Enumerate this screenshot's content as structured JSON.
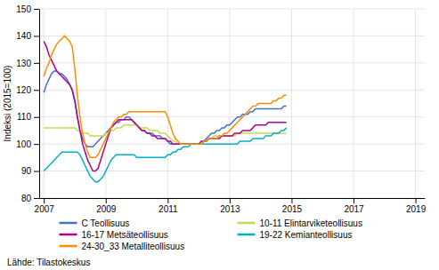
{
  "chart_data": {
    "type": "line",
    "ylabel": "Indeksi (2015=100)",
    "source": "Lähde: Tilastokeskus",
    "xlim": [
      2006.85,
      2019.3
    ],
    "xticks": [
      2007,
      2009,
      2011,
      2013,
      2015,
      2017,
      2019
    ],
    "ylim": [
      80,
      150
    ],
    "yticks": [
      80,
      90,
      100,
      110,
      120,
      130,
      140,
      150
    ],
    "grid": true,
    "legend": "bottom",
    "x": [
      2007,
      2007.0833333333,
      2007.1666666667,
      2007.25,
      2007.3333333333,
      2007.4166666667,
      2007.5,
      2007.5833333333,
      2007.6666666667,
      2007.75,
      2007.8333333333,
      2007.9166666667,
      2008,
      2008.0833333333,
      2008.1666666667,
      2008.25,
      2008.3333333333,
      2008.4166666667,
      2008.5,
      2008.5833333333,
      2008.6666666667,
      2008.75,
      2008.8333333333,
      2008.9166666667,
      2009,
      2009.0833333333,
      2009.1666666667,
      2009.25,
      2009.3333333333,
      2009.4166666667,
      2009.5,
      2009.5833333333,
      2009.6666666667,
      2009.75,
      2009.8333333333,
      2009.9166666667,
      2010,
      2010.0833333333,
      2010.1666666667,
      2010.25,
      2010.3333333333,
      2010.4166666667,
      2010.5,
      2010.5833333333,
      2010.6666666667,
      2010.75,
      2010.8333333333,
      2010.9166666667,
      2011,
      2011.0833333333,
      2011.1666666667,
      2011.25,
      2011.3333333333,
      2011.4166666667,
      2011.5,
      2011.5833333333,
      2011.6666666667,
      2011.75,
      2011.8333333333,
      2011.9166666667,
      2012,
      2012.0833333333,
      2012.1666666667,
      2012.25,
      2012.3333333333,
      2012.4166666667,
      2012.5,
      2012.5833333333,
      2012.6666666667,
      2012.75,
      2012.8333333333,
      2012.9166666667,
      2013,
      2013.0833333333,
      2013.1666666667,
      2013.25,
      2013.3333333333,
      2013.4166666667,
      2013.5,
      2013.5833333333,
      2013.6666666667,
      2013.75,
      2013.8333333333,
      2013.9166666667,
      2014,
      2014.0833333333,
      2014.1666666667,
      2014.25,
      2014.3333333333,
      2014.4166666667,
      2014.5,
      2014.5833333333,
      2014.6666666667,
      2014.75,
      2014.8333333333
    ],
    "series": [
      {
        "name": "C Teollisuus",
        "color": "#4472C4",
        "values": [
          119,
          122,
          124,
          126,
          127,
          127,
          126,
          126,
          125,
          124,
          122,
          120,
          116,
          110,
          105,
          102,
          100,
          99,
          99,
          99,
          100,
          101,
          102,
          103,
          104,
          105,
          106,
          107,
          108,
          108,
          109,
          109,
          110,
          110,
          109,
          108,
          107,
          106,
          105,
          105,
          104,
          104,
          104,
          103,
          103,
          103,
          102,
          102,
          101,
          100,
          100,
          100,
          100,
          100,
          100,
          100,
          100,
          100,
          100,
          100,
          100,
          100,
          101,
          102,
          103,
          104,
          104,
          105,
          105,
          106,
          106,
          107,
          107,
          108,
          109,
          110,
          110,
          111,
          111,
          111,
          112,
          112,
          113,
          113,
          113,
          113,
          113,
          113,
          113,
          113,
          113,
          113,
          113,
          114,
          114
        ]
      },
      {
        "name": "10-11 Elintarviketeollisuus",
        "color": "#C8D84B",
        "values": [
          106,
          106,
          106,
          106,
          106,
          106,
          106,
          106,
          106,
          106,
          106,
          106,
          106,
          105,
          105,
          104,
          104,
          104,
          103,
          103,
          103,
          103,
          103,
          103,
          104,
          104,
          105,
          105,
          106,
          106,
          106,
          107,
          107,
          107,
          107,
          107,
          107,
          106,
          106,
          106,
          106,
          105,
          105,
          105,
          105,
          104,
          104,
          104,
          103,
          102,
          101,
          101,
          100,
          100,
          100,
          100,
          100,
          100,
          100,
          100,
          100,
          100,
          101,
          101,
          102,
          102,
          103,
          103,
          103,
          103,
          103,
          103,
          103,
          103,
          103,
          104,
          104,
          104,
          104,
          104,
          104,
          104,
          104,
          104,
          104,
          104,
          104,
          104,
          104,
          104,
          104,
          104,
          104,
          104,
          104
        ]
      },
      {
        "name": "16-17 Metsäteollisuus",
        "color": "#B0008E",
        "values": [
          138,
          136,
          133,
          131,
          129,
          127,
          126,
          125,
          124,
          123,
          122,
          120,
          116,
          110,
          105,
          100,
          97,
          94,
          92,
          90,
          90,
          91,
          94,
          97,
          100,
          103,
          106,
          107,
          108,
          109,
          109,
          109,
          109,
          109,
          109,
          108,
          107,
          106,
          105,
          105,
          104,
          104,
          103,
          103,
          102,
          102,
          102,
          102,
          101,
          101,
          100,
          100,
          100,
          100,
          100,
          100,
          100,
          100,
          100,
          100,
          100,
          101,
          101,
          101,
          102,
          102,
          102,
          102,
          102,
          103,
          103,
          103,
          103,
          103,
          104,
          104,
          104,
          105,
          105,
          105,
          105,
          106,
          107,
          107,
          107,
          107,
          107,
          108,
          108,
          108,
          108,
          108,
          108,
          108,
          108
        ]
      },
      {
        "name": "19-22 Kemianteollisuus",
        "color": "#00B0C8",
        "values": [
          90,
          91,
          92,
          93,
          94,
          95,
          96,
          97,
          97,
          97,
          97,
          97,
          97,
          97,
          96,
          94,
          92,
          90,
          88,
          87,
          86,
          86,
          87,
          88,
          90,
          92,
          94,
          95,
          96,
          96,
          96,
          96,
          96,
          96,
          96,
          96,
          95,
          95,
          95,
          95,
          95,
          95,
          95,
          95,
          95,
          95,
          95,
          95,
          96,
          96,
          97,
          97,
          98,
          98,
          99,
          99,
          99,
          100,
          100,
          100,
          100,
          100,
          100,
          100,
          100,
          100,
          100,
          100,
          100,
          100,
          100,
          100,
          100,
          100,
          100,
          100,
          101,
          101,
          101,
          101,
          101,
          102,
          102,
          102,
          102,
          102,
          103,
          103,
          103,
          104,
          104,
          104,
          105,
          105,
          106
        ]
      },
      {
        "name": "24-30_33 Metalliteollisuus",
        "color": "#FF8C00",
        "values": [
          125,
          128,
          130,
          133,
          135,
          137,
          138,
          139,
          140,
          139,
          138,
          136,
          128,
          118,
          110,
          104,
          100,
          97,
          95,
          95,
          95,
          96,
          98,
          100,
          102,
          104,
          106,
          108,
          109,
          110,
          110,
          111,
          111,
          112,
          112,
          112,
          112,
          112,
          112,
          112,
          112,
          112,
          112,
          112,
          112,
          112,
          112,
          112,
          110,
          107,
          104,
          102,
          101,
          100,
          100,
          100,
          100,
          100,
          100,
          100,
          100,
          100,
          101,
          101,
          102,
          102,
          102,
          102,
          103,
          103,
          104,
          104,
          105,
          106,
          107,
          108,
          109,
          110,
          111,
          112,
          113,
          114,
          114,
          115,
          115,
          115,
          115,
          115,
          115,
          116,
          116,
          117,
          117,
          118,
          118
        ]
      }
    ]
  }
}
